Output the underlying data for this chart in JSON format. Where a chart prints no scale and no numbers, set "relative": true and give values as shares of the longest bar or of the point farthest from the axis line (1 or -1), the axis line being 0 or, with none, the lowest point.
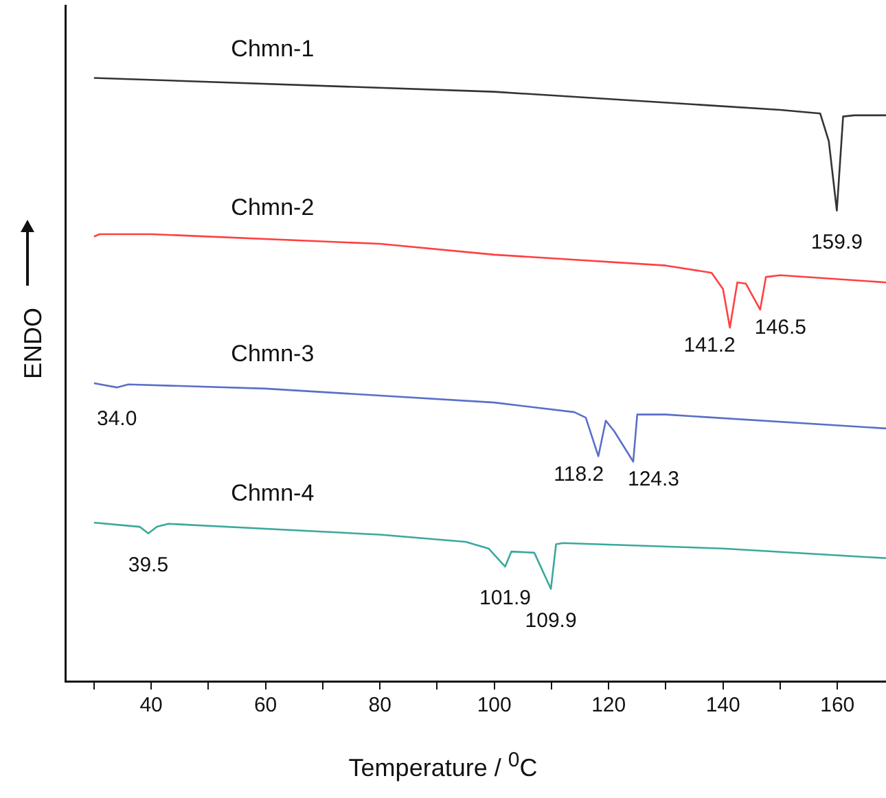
{
  "chart_data": {
    "type": "line",
    "relative": true,
    "xlabel": "Temperature / $^{0}$C",
    "ylabel": "ENDO",
    "xlim": [
      25,
      168.5
    ],
    "xticks": [
      {
        "value": 30,
        "label": null
      },
      40,
      {
        "value": 50,
        "label": null
      },
      60,
      {
        "value": 70,
        "label": null
      },
      80,
      {
        "value": 90,
        "label": null
      },
      100,
      {
        "value": 110,
        "label": null
      },
      120,
      {
        "value": 130,
        "label": null
      },
      140,
      {
        "value": 150,
        "label": null
      },
      160
    ],
    "marker": "none",
    "line_style": "solid",
    "legend": false,
    "series": [
      {
        "name": "Chmn-1",
        "color": "#333333",
        "x": [
          30,
          100,
          150,
          157,
          158.5,
          159.9,
          161,
          163,
          168.5
        ],
        "values": [
          1.0,
          0.977,
          0.947,
          0.941,
          0.895,
          0.78,
          0.936,
          0.938,
          0.938
        ]
      },
      {
        "name": "Chmn-2",
        "color": "#ff4040",
        "x": [
          30,
          31,
          40,
          80,
          100,
          130,
          138,
          140,
          141.2,
          142.5,
          144,
          146.5,
          147.5,
          150,
          168.5
        ],
        "values": [
          0.737,
          0.741,
          0.741,
          0.725,
          0.707,
          0.689,
          0.677,
          0.65,
          0.586,
          0.661,
          0.659,
          0.616,
          0.67,
          0.673,
          0.661
        ]
      },
      {
        "name": "Chmn-3",
        "color": "#5a6fc8",
        "x": [
          30,
          34,
          36,
          60,
          100,
          114,
          116,
          118.2,
          119.5,
          121,
          124.3,
          125,
          130,
          168.5
        ],
        "values": [
          0.494,
          0.487,
          0.492,
          0.485,
          0.462,
          0.446,
          0.437,
          0.373,
          0.432,
          0.414,
          0.364,
          0.442,
          0.442,
          0.419
        ]
      },
      {
        "name": "Chmn-4",
        "color": "#3aa89c",
        "x": [
          30,
          38,
          39.5,
          41,
          43,
          80,
          95,
          99,
          101.9,
          103,
          107,
          109.9,
          110.8,
          112,
          140,
          168.5
        ],
        "values": [
          0.263,
          0.256,
          0.245,
          0.256,
          0.261,
          0.243,
          0.231,
          0.22,
          0.19,
          0.215,
          0.213,
          0.153,
          0.227,
          0.229,
          0.22,
          0.204
        ]
      }
    ],
    "annotations": [
      {
        "text": "159.9",
        "x": 159.9,
        "y": 0.78
      },
      {
        "text": "141.2",
        "x": 141.2,
        "y": 0.586
      },
      {
        "text": "146.5",
        "x": 146.5,
        "y": 0.616
      },
      {
        "text": "34.0",
        "x": 34,
        "y": 0.487
      },
      {
        "text": "118.2",
        "x": 118.2,
        "y": 0.373
      },
      {
        "text": "124.3",
        "x": 124.3,
        "y": 0.364
      },
      {
        "text": "39.5",
        "x": 39.5,
        "y": 0.245
      },
      {
        "text": "101.9",
        "x": 101.9,
        "y": 0.19
      },
      {
        "text": "109.9",
        "x": 109.9,
        "y": 0.153
      }
    ]
  }
}
